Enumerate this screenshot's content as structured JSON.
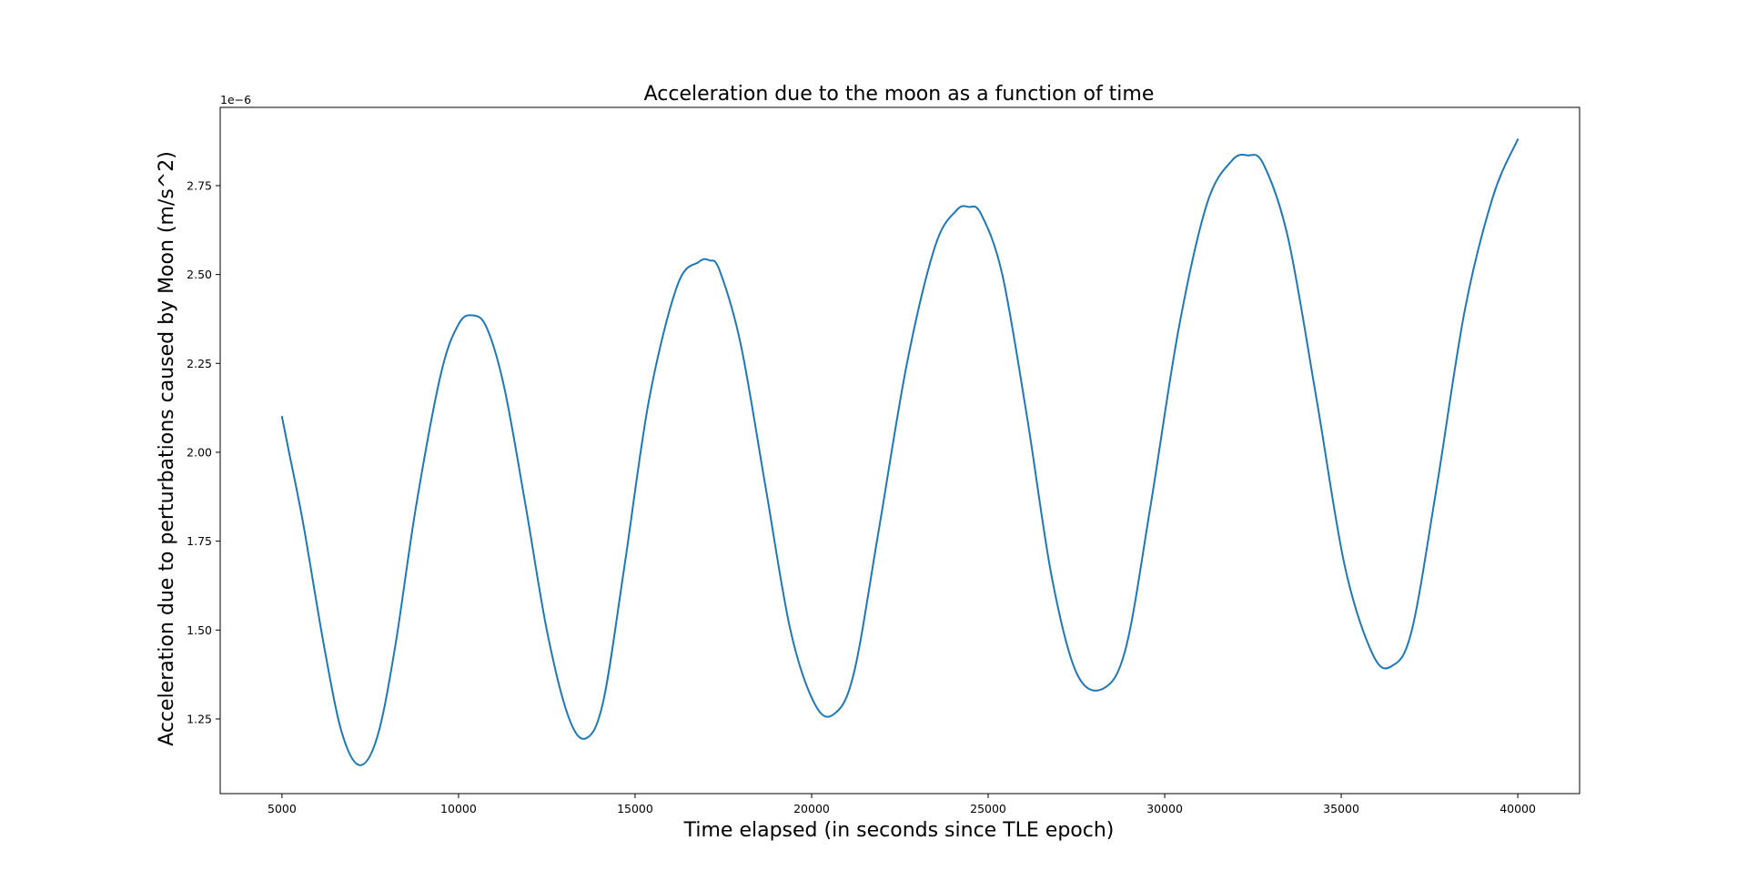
{
  "chart_data": {
    "type": "line",
    "title": "Acceleration due to the moon as a function of time",
    "xlabel": "Time elapsed (in seconds since TLE epoch)",
    "ylabel": "Acceleration due to perturbations caused by Moon (m/s^2)",
    "y_offset_label": "1e−6",
    "xlim": [
      3250,
      41750
    ],
    "ylim": [
      1.04e-06,
      2.97e-06
    ],
    "x_ticks": [
      5000,
      10000,
      15000,
      20000,
      25000,
      30000,
      35000,
      40000
    ],
    "x_tick_labels": [
      "5000",
      "10000",
      "15000",
      "20000",
      "25000",
      "30000",
      "35000",
      "40000"
    ],
    "y_ticks": [
      1.25e-06,
      1.5e-06,
      1.75e-06,
      2e-06,
      2.25e-06,
      2.5e-06,
      2.75e-06
    ],
    "y_tick_labels": [
      "1.25",
      "1.50",
      "1.75",
      "2.00",
      "2.25",
      "2.50",
      "2.75"
    ],
    "grid": false,
    "series": [
      {
        "color": "#1f77b4",
        "x": [
          5000,
          5200,
          5600,
          6200,
          6700,
          7200,
          7700,
          8200,
          8800,
          9500,
          10000,
          10400,
          10800,
          11300,
          11900,
          12500,
          13100,
          13600,
          14100,
          14700,
          15400,
          16200,
          16800,
          17100,
          17400,
          18000,
          18700,
          19400,
          20100,
          20650,
          21200,
          21900,
          22700,
          23500,
          24100,
          24450,
          24800,
          25400,
          26100,
          26800,
          27500,
          28250,
          28900,
          29600,
          30400,
          31200,
          31900,
          32350,
          32800,
          33500,
          34300,
          35100,
          35900,
          36450,
          37000,
          37700,
          38500,
          39300,
          40000
        ],
        "y": [
          2.1e-06,
          2e-06,
          1.8e-06,
          1.45e-06,
          1.21e-06,
          1.12e-06,
          1.2e-06,
          1.45e-06,
          1.85e-06,
          2.22e-06,
          2.36e-06,
          2.385e-06,
          2.35e-06,
          2.18e-06,
          1.85e-06,
          1.5e-06,
          1.26e-06,
          1.195e-06,
          1.3e-06,
          1.68e-06,
          2.15e-06,
          2.47e-06,
          2.535e-06,
          2.54e-06,
          2.51e-06,
          2.3e-06,
          1.9e-06,
          1.5e-06,
          1.29e-06,
          1.265e-06,
          1.38e-06,
          1.78e-06,
          2.25e-06,
          2.58e-06,
          2.68e-06,
          2.69e-06,
          2.67e-06,
          2.5e-06,
          2.1e-06,
          1.65e-06,
          1.38e-06,
          1.335e-06,
          1.45e-06,
          1.85e-06,
          2.35e-06,
          2.7e-06,
          2.82e-06,
          2.835e-06,
          2.81e-06,
          2.6e-06,
          2.15e-06,
          1.68e-06,
          1.43e-06,
          1.4e-06,
          1.5e-06,
          1.9e-06,
          2.4e-06,
          2.72e-06,
          2.88e-06
        ]
      }
    ]
  }
}
